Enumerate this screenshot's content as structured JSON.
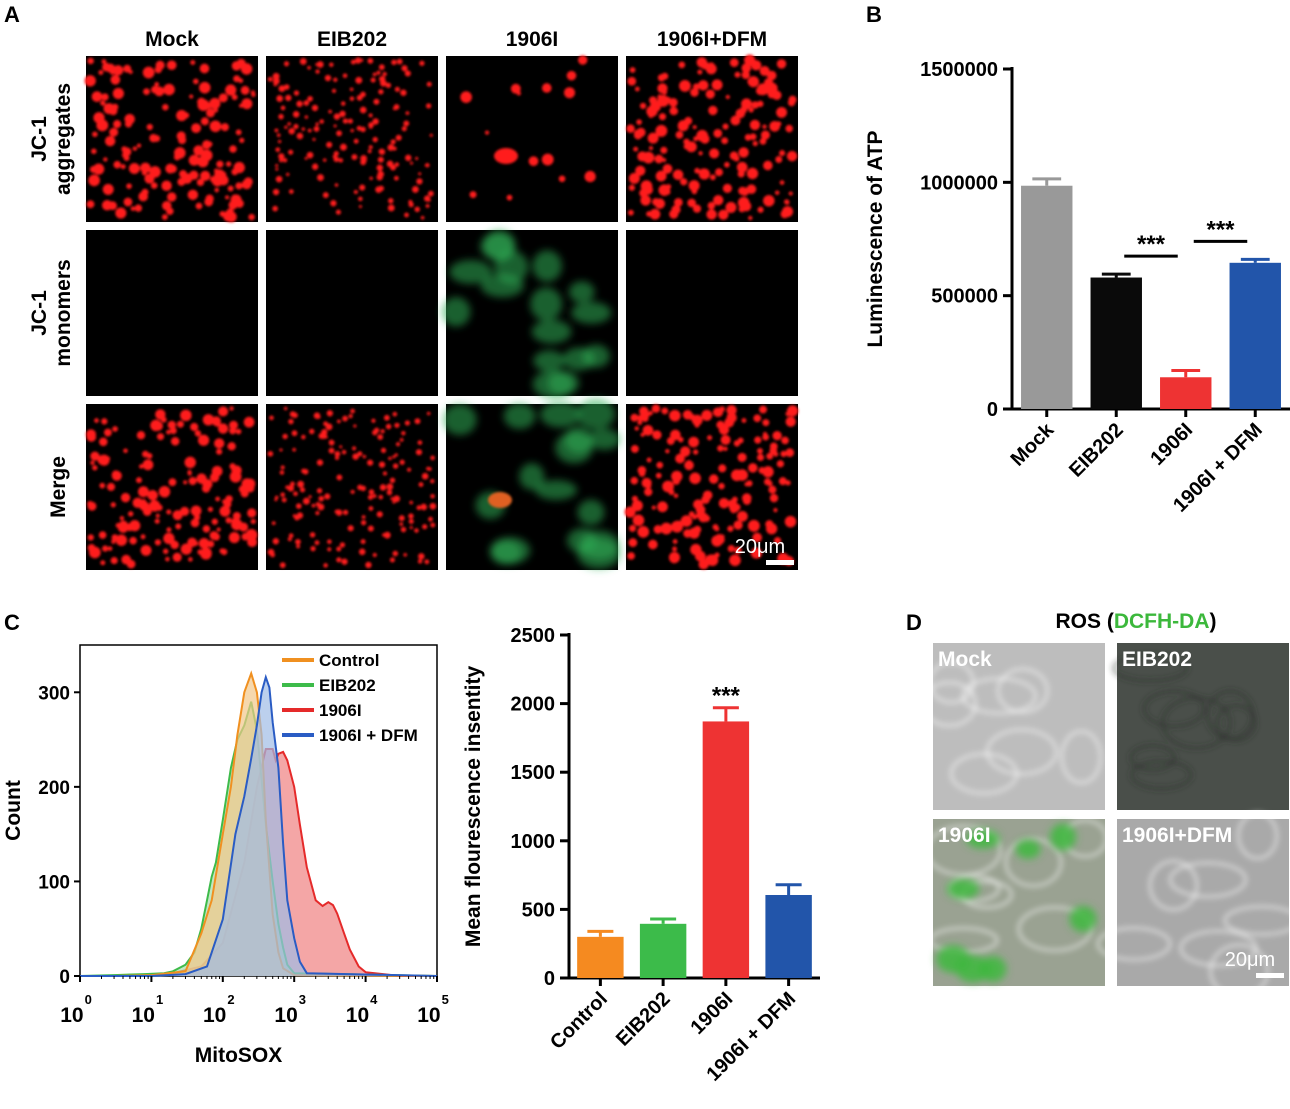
{
  "panel_letters": {
    "a": "A",
    "b": "B",
    "c": "C",
    "d": "D"
  },
  "panel_a": {
    "columns": [
      "Mock",
      "EIB202",
      "1906I",
      "1906I+DFM"
    ],
    "rows": [
      [
        "JC-1",
        "aggregates"
      ],
      [
        "JC-1",
        "monomers"
      ],
      [
        "Merge"
      ]
    ],
    "scale_bar": "20μm",
    "colors": {
      "aggregates": "#ff1a1a",
      "monomers": "#2fae55",
      "background": "#000000"
    }
  },
  "panel_d": {
    "title_prefix": "ROS (",
    "title_stain": "DCFH-DA",
    "title_suffix": ")",
    "stain_color": "#3cb83c",
    "tiles": [
      "Mock",
      "EIB202",
      "1906I",
      "1906I+DFM"
    ],
    "scale_bar": "20μm"
  },
  "chart_data": [
    {
      "id": "B",
      "type": "bar",
      "ylabel": "Luminescence of ATP",
      "ylim": [
        0,
        1500000
      ],
      "yticks": [
        0,
        500000,
        1000000,
        1500000
      ],
      "categories": [
        "Mock",
        "EIB202",
        "1906I",
        "1906I + DFM"
      ],
      "values": [
        985000,
        580000,
        140000,
        645000
      ],
      "errors": [
        30000,
        15000,
        30000,
        15000
      ],
      "colors": [
        "#999999",
        "#0a0a0a",
        "#ee3333",
        "#2255aa"
      ],
      "significance": [
        {
          "from": 1,
          "to": 2,
          "label": "***"
        },
        {
          "from": 2,
          "to": 3,
          "label": "***"
        }
      ]
    },
    {
      "id": "C-histogram",
      "type": "area",
      "xlabel": "MitoSOX",
      "ylabel": "Count",
      "xscale": "log",
      "xlim": [
        1,
        100000
      ],
      "xticks": [
        1,
        10,
        100,
        1000,
        10000,
        100000
      ],
      "xtick_labels": [
        {
          "base": "10",
          "exp": "0"
        },
        {
          "base": "10",
          "exp": "1"
        },
        {
          "base": "10",
          "exp": "2"
        },
        {
          "base": "10",
          "exp": "3"
        },
        {
          "base": "10",
          "exp": "4"
        },
        {
          "base": "10",
          "exp": "5"
        }
      ],
      "ylim": [
        0,
        350
      ],
      "yticks": [
        0,
        100,
        200,
        300
      ],
      "legend_position": "top-right",
      "series": [
        {
          "name": "1906I",
          "color": "#e52a2a",
          "fill": "#f08080",
          "x": [
            1,
            3,
            8,
            20,
            50,
            100,
            200,
            300,
            400,
            500,
            550,
            600,
            700,
            800,
            1000,
            1200,
            1500,
            2000,
            2500,
            3000,
            3500,
            4000,
            5000,
            6000,
            8000,
            10000,
            30000,
            100000
          ],
          "y": [
            0,
            0,
            0,
            3,
            10,
            35,
            120,
            200,
            240,
            240,
            228,
            235,
            237,
            228,
            200,
            160,
            115,
            80,
            74,
            78,
            75,
            66,
            45,
            28,
            10,
            4,
            0,
            0
          ]
        },
        {
          "name": "EIB202",
          "color": "#3dbb4a",
          "fill": "#a8dca8",
          "x": [
            1,
            3,
            8,
            15,
            20,
            30,
            40,
            50,
            60,
            70,
            80,
            100,
            130,
            160,
            200,
            250,
            300,
            400,
            500,
            600,
            700,
            800,
            1000,
            100000
          ],
          "y": [
            0,
            1,
            2,
            3,
            5,
            12,
            25,
            50,
            80,
            105,
            120,
            165,
            220,
            250,
            265,
            290,
            260,
            160,
            100,
            55,
            30,
            12,
            3,
            0
          ]
        },
        {
          "name": "Control",
          "color": "#f09020",
          "fill": "#f2c88a",
          "x": [
            1,
            3,
            10,
            30,
            50,
            70,
            100,
            130,
            160,
            200,
            250,
            300,
            350,
            400,
            500,
            600,
            700,
            1000,
            100000
          ],
          "y": [
            0,
            0,
            1,
            5,
            45,
            80,
            150,
            200,
            255,
            300,
            320,
            300,
            255,
            165,
            65,
            25,
            8,
            1,
            0
          ]
        },
        {
          "name": "1906I + DFM",
          "color": "#2a5cc4",
          "fill": "#a0bce6",
          "x": [
            1,
            3,
            10,
            30,
            60,
            100,
            150,
            200,
            250,
            300,
            350,
            400,
            450,
            500,
            600,
            700,
            800,
            1000,
            1200,
            1500,
            100000
          ],
          "y": [
            0,
            0,
            0,
            2,
            10,
            60,
            150,
            190,
            230,
            265,
            300,
            316,
            305,
            268,
            220,
            140,
            80,
            40,
            15,
            3,
            0
          ]
        }
      ]
    },
    {
      "id": "C-bar",
      "type": "bar",
      "ylabel": "Mean flourescence insentity",
      "ylim": [
        0,
        2500
      ],
      "yticks": [
        0,
        500,
        1000,
        1500,
        2000,
        2500
      ],
      "categories": [
        "Control",
        "EIB202",
        "1906I",
        "1906I + DFM"
      ],
      "values": [
        300,
        395,
        1870,
        605
      ],
      "errors": [
        40,
        35,
        100,
        75
      ],
      "colors": [
        "#f58a20",
        "#3cbb4a",
        "#ee3333",
        "#2255aa"
      ],
      "annotations": [
        {
          "index": 2,
          "label": "***"
        }
      ]
    }
  ]
}
